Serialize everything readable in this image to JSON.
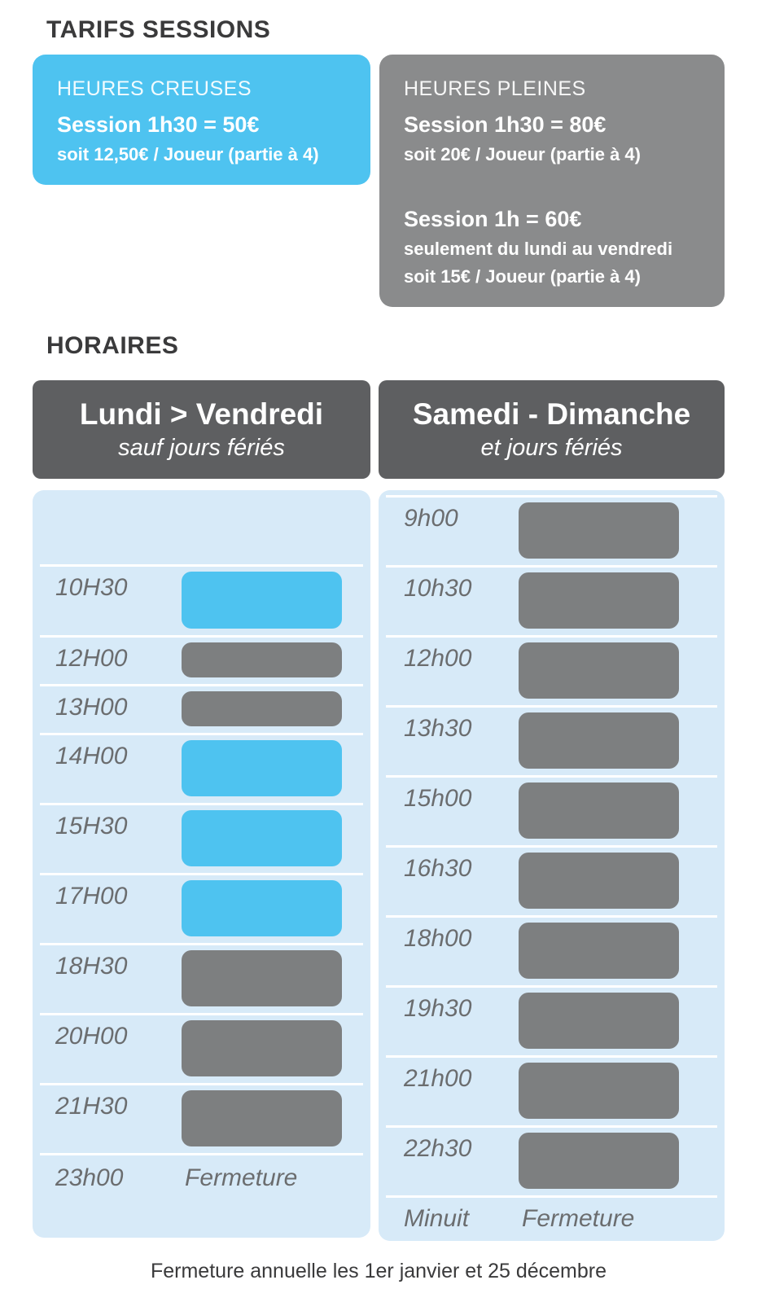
{
  "page": {
    "tarifs_title": "TARIFS SESSIONS",
    "horaires_title": "HORAIRES",
    "footer_note": "Fermeture annuelle les 1er janvier et 25 décembre"
  },
  "cards": {
    "creuses": {
      "label": "HEURES CREUSES",
      "price_line": "Session 1h30 = 50€",
      "detail_line": "soit 12,50€ / Joueur (partie à 4)"
    },
    "pleines": {
      "label": "HEURES PLEINES",
      "offers": [
        {
          "price_line": "Session 1h30 = 80€",
          "details": [
            "soit 20€ / Joueur (partie à 4)"
          ]
        },
        {
          "price_line": "Session 1h = 60€",
          "details": [
            "seulement du lundi au vendredi",
            "soit 15€ / Joueur (partie à 4)"
          ]
        }
      ]
    }
  },
  "schedule": {
    "columns": [
      {
        "id": "weekday",
        "header": {
          "title": "Lundi > Vendredi",
          "subtitle": "sauf jours fériés"
        },
        "rows": [
          {
            "time": "",
            "variant": "empty"
          },
          {
            "time": "10H30",
            "rate": "creuse",
            "variant": "tall"
          },
          {
            "time": "12H00",
            "rate": "pleine",
            "variant": "short"
          },
          {
            "time": "13H00",
            "rate": "pleine",
            "variant": "short"
          },
          {
            "time": "14H00",
            "rate": "creuse",
            "variant": "standard"
          },
          {
            "time": "15H30",
            "rate": "creuse",
            "variant": "standard"
          },
          {
            "time": "17H00",
            "rate": "creuse",
            "variant": "standard"
          },
          {
            "time": "18H30",
            "rate": "pleine",
            "variant": "standard"
          },
          {
            "time": "20H00",
            "rate": "pleine",
            "variant": "standard"
          },
          {
            "time": "21H30",
            "rate": "pleine",
            "variant": "standard"
          },
          {
            "time": "23h00",
            "variant": "closing",
            "label": "Fermeture"
          }
        ]
      },
      {
        "id": "weekend",
        "header": {
          "title": "Samedi - Dimanche",
          "subtitle": "et jours fériés"
        },
        "rows": [
          {
            "time": "9h00",
            "rate": "pleine",
            "variant": "standard"
          },
          {
            "time": "10h30",
            "rate": "pleine",
            "variant": "standard"
          },
          {
            "time": "12h00",
            "rate": "pleine",
            "variant": "standard"
          },
          {
            "time": "13h30",
            "rate": "pleine",
            "variant": "standard"
          },
          {
            "time": "15h00",
            "rate": "pleine",
            "variant": "standard"
          },
          {
            "time": "16h30",
            "rate": "pleine",
            "variant": "standard"
          },
          {
            "time": "18h00",
            "rate": "pleine",
            "variant": "standard"
          },
          {
            "time": "19h30",
            "rate": "pleine",
            "variant": "standard"
          },
          {
            "time": "21h00",
            "rate": "pleine",
            "variant": "standard"
          },
          {
            "time": "22h30",
            "rate": "pleine",
            "variant": "standard"
          },
          {
            "time": "Minuit",
            "variant": "closing",
            "label": "Fermeture"
          }
        ]
      }
    ]
  },
  "colors": {
    "accent_blue": "#4ec3f0",
    "panel_blue": "#d7eaf8",
    "bar_gray": "#7d7f80",
    "header_gray": "#5e5f61",
    "card_gray": "#8a8b8c",
    "text_dark": "#3a3a3b",
    "label_gray": "#6b6d6f"
  }
}
